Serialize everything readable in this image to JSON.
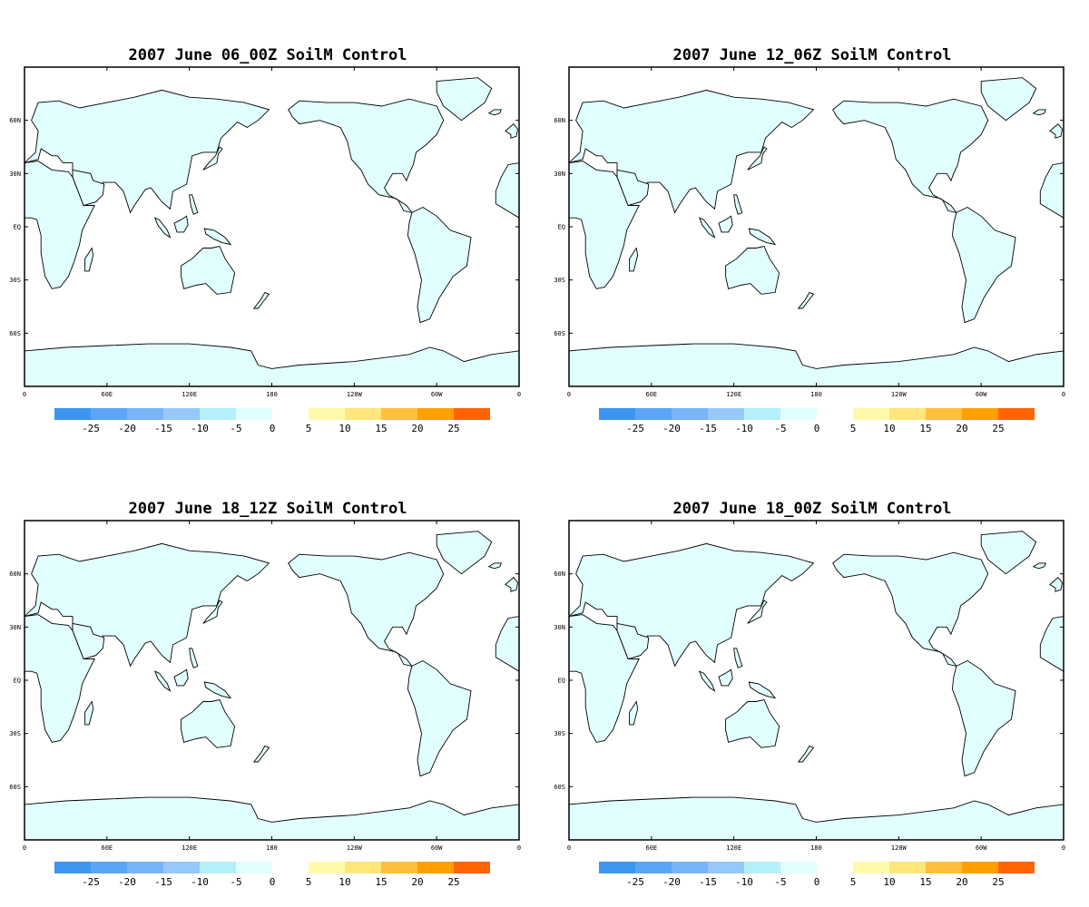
{
  "colors": {
    "land": "#E1FFFF",
    "ocean": "#FFFFFF",
    "coast": "#000000",
    "negative": [
      "#3C96F0",
      "#5AA5F5",
      "#78B4F8",
      "#96C8FA",
      "#B4F0FA",
      "#E1FFFF"
    ],
    "positive": [
      "#FFFAAA",
      "#FFE678",
      "#FFC03C",
      "#FFA000",
      "#FF6400"
    ]
  },
  "axes": {
    "lat_labels": [
      "60N",
      "30N",
      "EQ",
      "30S",
      "60S"
    ],
    "lat_values": [
      60,
      30,
      0,
      -30,
      -60
    ],
    "lon_labels": [
      "0",
      "60E",
      "120E",
      "180",
      "120W",
      "60W",
      "0"
    ],
    "lon_values": [
      0,
      60,
      120,
      180,
      240,
      300,
      360
    ]
  },
  "colorbar": {
    "negative_labels": [
      "-25",
      "-20",
      "-15",
      "-10",
      "-5",
      "0"
    ],
    "positive_labels": [
      "5",
      "10",
      "15",
      "20",
      "25"
    ]
  },
  "panels": [
    {
      "title": "2007 June 06_00Z SoilM Control"
    },
    {
      "title": "2007 June 12_06Z SoilM Control"
    },
    {
      "title": "2007 June 18_12Z SoilM Control"
    },
    {
      "title": "2007 June 18_00Z SoilM Control"
    }
  ]
}
